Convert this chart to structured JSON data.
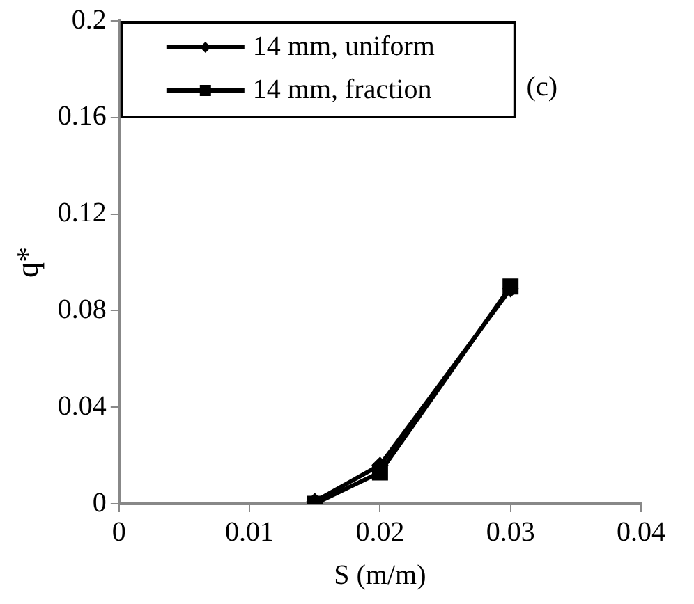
{
  "chart_data": {
    "type": "line",
    "xlabel": "S (m/m)",
    "ylabel": "q*",
    "x": [
      0.015,
      0.02,
      0.03
    ],
    "series": [
      {
        "name": "14 mm, uniform",
        "color": "#000000",
        "marker": "diamond",
        "values": [
          0.001,
          0.016,
          0.089
        ]
      },
      {
        "name": "14 mm, fraction",
        "color": "#000000",
        "marker": "square",
        "values": [
          0,
          0.013,
          0.09
        ]
      }
    ],
    "xlim": [
      0,
      0.04
    ],
    "xticks": [
      0,
      0.01,
      0.02,
      0.03,
      0.04
    ],
    "ylim": [
      0,
      0.2
    ],
    "yticks": [
      0,
      0.04,
      0.08,
      0.12,
      0.16,
      0.2
    ],
    "grid": false,
    "legend": "top left",
    "line_style": "solid",
    "annotations": [
      "(c)"
    ]
  }
}
